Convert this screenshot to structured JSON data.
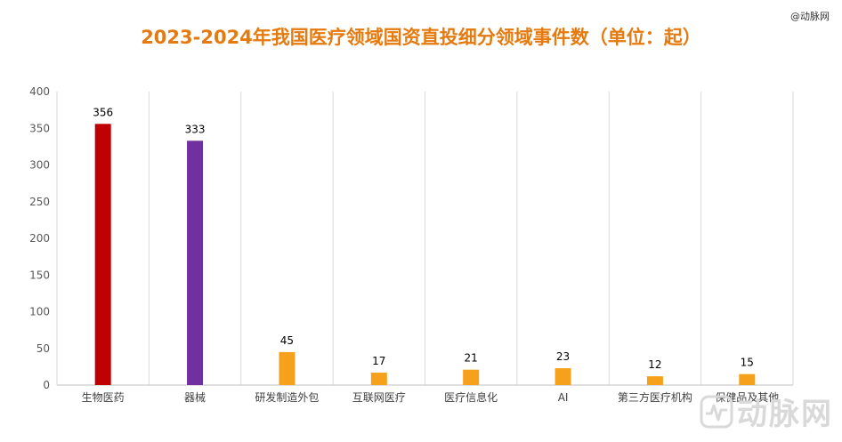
{
  "watermark": "@动脉网",
  "brand": {
    "logo_text": "动脉网",
    "logo_icon": "pulse-logo-icon"
  },
  "chart_data": {
    "type": "bar",
    "title": "2023-2024年我国医疗领域国资直投细分领域事件数（单位：起）",
    "categories": [
      "生物医药",
      "器械",
      "研发制造外包",
      "互联网医疗",
      "医疗信息化",
      "AI",
      "第三方医疗机构",
      "保健品及其他"
    ],
    "values": [
      356,
      333,
      45,
      17,
      21,
      23,
      12,
      15
    ],
    "colors": [
      "#C00000",
      "#7030A0",
      "#F5A11C",
      "#F5A11C",
      "#F5A11C",
      "#F5A11C",
      "#F5A11C",
      "#F5A11C"
    ],
    "ylim": [
      0,
      400
    ],
    "yticks": [
      0,
      50,
      100,
      150,
      200,
      250,
      300,
      350,
      400
    ],
    "xlabel": "",
    "ylabel": "",
    "legend": "none",
    "grid": "vertical"
  }
}
